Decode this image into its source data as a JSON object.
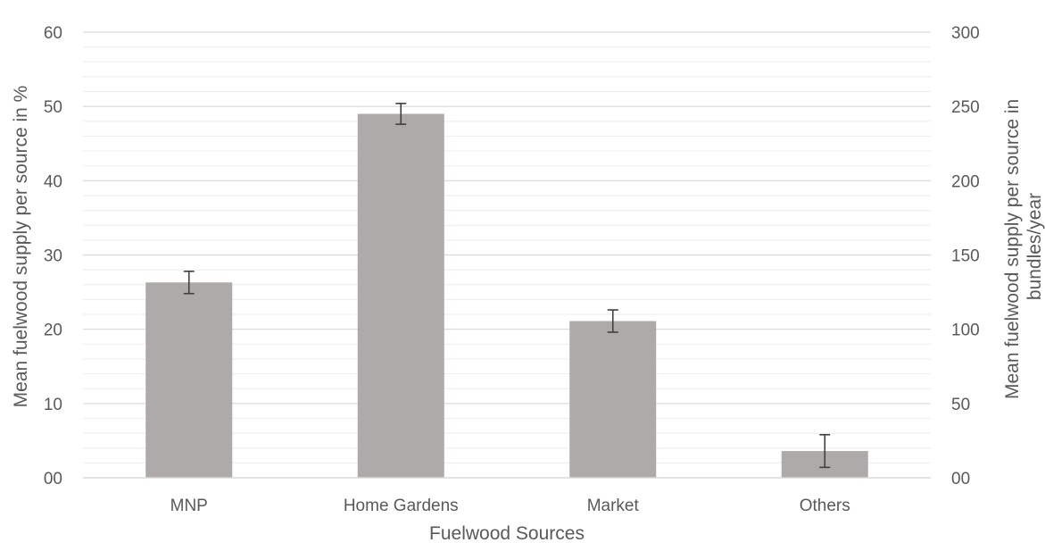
{
  "chart_data": {
    "type": "bar",
    "title": "",
    "xlabel": "Fuelwood Sources",
    "ylabel": "Mean fuelwood supply per source in %",
    "y2label_lines": [
      "Mean fuelwood supply per source in",
      "bundles/year"
    ],
    "categories": [
      "MNP",
      "Home Gardens",
      "Market",
      "Others"
    ],
    "series": [
      {
        "values": [
          26.3,
          49.0,
          21.1,
          3.6
        ],
        "errors": [
          1.5,
          1.4,
          1.5,
          2.2
        ]
      }
    ],
    "ylim": [
      0,
      60
    ],
    "y2lim": [
      0,
      300
    ],
    "yticks": [
      "00",
      "10",
      "20",
      "30",
      "40",
      "50",
      "60"
    ],
    "y2ticks": [
      "00",
      "50",
      "100",
      "150",
      "200",
      "250",
      "300"
    ],
    "grid": true,
    "minor_grid": true,
    "legend": "none",
    "colors": {
      "bar": "#aeaaaa",
      "grid": "#d9d9d9",
      "text": "#595959",
      "errorbar": "#404040"
    }
  }
}
